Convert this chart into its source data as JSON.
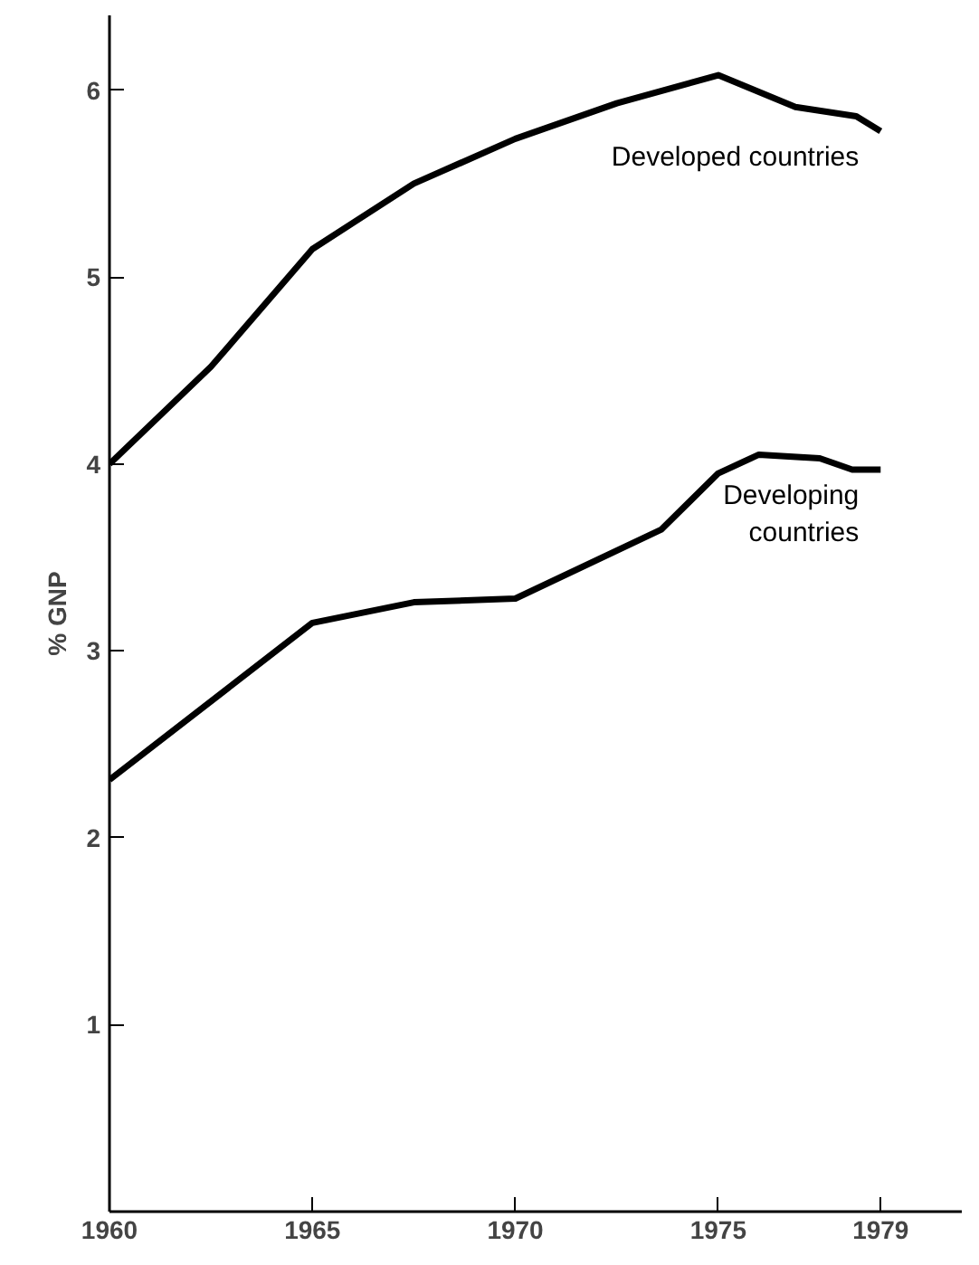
{
  "chart_data": {
    "type": "line",
    "ylabel": "% GNP",
    "series": [
      {
        "name": "Developed countries",
        "color": "#000000",
        "x": [
          1960,
          1962.5,
          1965,
          1967.5,
          1970,
          1972.5,
          1975,
          1976.9,
          1978.4,
          1979
        ],
        "values": [
          4.0,
          4.52,
          5.15,
          5.5,
          5.74,
          5.93,
          6.08,
          5.91,
          5.86,
          5.78
        ]
      },
      {
        "name": "Developing\ncountries",
        "color": "#000000",
        "x": [
          1960,
          1965,
          1967.5,
          1970,
          1973.6,
          1975,
          1976,
          1977.5,
          1978.3,
          1979
        ],
        "values": [
          2.31,
          3.15,
          3.26,
          3.28,
          3.65,
          3.95,
          4.05,
          4.03,
          3.97,
          3.97
        ]
      }
    ],
    "xlim": [
      1960,
      1981
    ],
    "ylim": [
      0,
      6.4
    ],
    "xticks": [
      1960,
      1965,
      1970,
      1975,
      1979
    ],
    "yticks": [
      1,
      2,
      3,
      4,
      5,
      6
    ],
    "grid": false,
    "marker": "none",
    "line_style": "solid"
  }
}
